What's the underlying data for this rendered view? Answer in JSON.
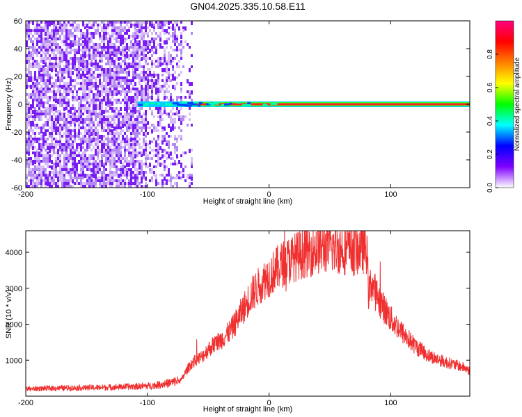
{
  "title": "GN04.2025.335.10.58.E11",
  "chart_data": [
    {
      "type": "heatmap",
      "title": "GN04.2025.335.10.58.E11",
      "xlabel": "Height of straight line (km)",
      "ylabel": "Frequency (Hz)",
      "xlim": [
        -200,
        165
      ],
      "ylim": [
        -60,
        60
      ],
      "x_ticks": [
        -200,
        -100,
        0,
        100
      ],
      "y_ticks": [
        -60,
        -40,
        -20,
        0,
        20,
        40,
        60
      ],
      "noise_region_x": [
        -200,
        -72
      ],
      "signal_band": {
        "x_start": -108,
        "x_end": 165,
        "center_freq": 0
      },
      "colorbar": {
        "label": "Normalized spectral amplitude",
        "range": [
          0.0,
          1.0
        ],
        "ticks": [
          0.0,
          0.2,
          0.4,
          0.6,
          0.8
        ],
        "colors": [
          "#ffffff",
          "#8000ff",
          "#0000ff",
          "#00ffff",
          "#00ff00",
          "#ffff00",
          "#ff8000",
          "#ff0000",
          "#ff0080"
        ]
      }
    },
    {
      "type": "line",
      "xlabel": "Height of straight line (km)",
      "ylabel": "SNR (10 * v/v)",
      "xlim": [
        -200,
        165
      ],
      "ylim": [
        0,
        4600
      ],
      "x_ticks": [
        -200,
        -100,
        0,
        100
      ],
      "y_ticks": [
        1000,
        2000,
        3000,
        4000
      ],
      "color": "#f03030",
      "series": [
        {
          "name": "SNR",
          "x": [
            -200,
            -180,
            -160,
            -140,
            -120,
            -100,
            -90,
            -80,
            -72,
            -68,
            -64,
            -60,
            -55,
            -50,
            -45,
            -40,
            -35,
            -30,
            -25,
            -20,
            -15,
            -10,
            -5,
            0,
            5,
            10,
            20,
            30,
            40,
            50,
            60,
            70,
            80,
            82,
            84,
            86,
            90,
            100,
            110,
            120,
            130,
            140,
            150,
            160,
            165
          ],
          "values": [
            200,
            220,
            230,
            240,
            260,
            280,
            320,
            380,
            450,
            700,
            900,
            1000,
            1100,
            1300,
            1450,
            1550,
            1700,
            1900,
            2200,
            2500,
            2800,
            3000,
            3200,
            3350,
            3500,
            3650,
            3850,
            4000,
            4100,
            4150,
            4100,
            4050,
            4150,
            2800,
            3200,
            3000,
            2700,
            2150,
            1750,
            1400,
            1150,
            1000,
            900,
            800,
            700
          ]
        }
      ]
    }
  ]
}
